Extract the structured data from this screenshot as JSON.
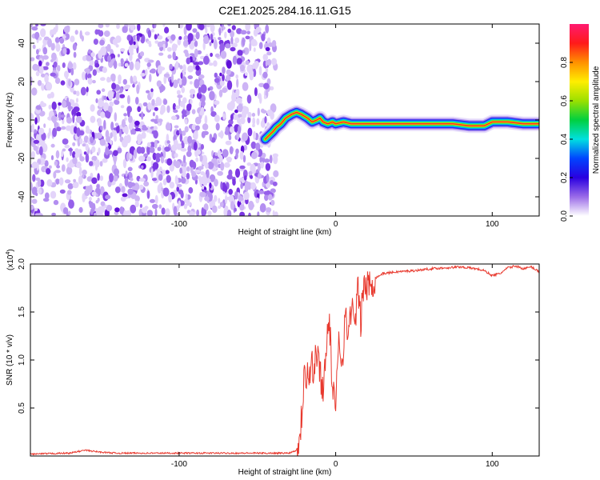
{
  "title": "C2E1.2025.284.16.11.G15",
  "chart_data": [
    {
      "type": "heatmap",
      "xlabel": "Height of straight line (km)",
      "ylabel": "Frequency (Hz)",
      "xlim": [
        -195,
        130
      ],
      "ylim": [
        -50,
        50
      ],
      "xticks": [
        -100,
        0,
        100
      ],
      "yticks": [
        -40,
        -20,
        0,
        20,
        40
      ],
      "noise_region_x": [
        -195,
        -38
      ],
      "signal_trace": {
        "x": [
          -45,
          -40,
          -38,
          -35,
          -32,
          -28,
          -25,
          -22,
          -18,
          -15,
          -12,
          -10,
          -8,
          -5,
          -2,
          0,
          5,
          10,
          20,
          40,
          60,
          75,
          85,
          95,
          100,
          110,
          120,
          130
        ],
        "y": [
          -10,
          -6,
          -4,
          -2,
          1,
          3,
          4,
          3,
          1,
          -1,
          0,
          1,
          -1,
          -2,
          -1,
          -2,
          -1,
          -2,
          -2,
          -2,
          -2,
          -2,
          -3,
          -3,
          -1,
          -1,
          -2,
          -2
        ]
      },
      "colorbar": {
        "label": "Normalized spectral amplitude",
        "range": [
          0,
          1
        ],
        "ticks": [
          "0.0",
          "0.2",
          "0.4",
          "0.6",
          "0.8"
        ]
      }
    },
    {
      "type": "line",
      "xlabel": "Height of straight line (km)",
      "ylabel": "SNR (10 * v/v)",
      "yscale_label": "(x10",
      "yscale_exp": "4",
      "xlim": [
        -195,
        130
      ],
      "ylim": [
        0,
        2.0
      ],
      "xticks": [
        -100,
        0,
        100
      ],
      "yticks": [
        0.5,
        1.0,
        1.5,
        2.0
      ],
      "ytick_labels": [
        "0.5",
        "1.0",
        "1.5",
        "2.0"
      ],
      "color": "#e8392e",
      "series": [
        {
          "x": [
            -195,
            -170,
            -160,
            -150,
            -140,
            -100,
            -60,
            -30,
            -25,
            -23,
            -21,
            -20,
            -19,
            -18,
            -17,
            -16,
            -15,
            -14,
            -13,
            -10,
            -8,
            -6,
            -4,
            -2,
            0,
            2,
            4,
            6,
            8,
            10,
            12,
            14,
            16,
            18,
            20,
            25,
            30,
            40,
            50,
            60,
            70,
            80,
            90,
            95,
            100,
            105,
            110,
            115,
            120,
            125,
            130
          ],
          "y": [
            0.02,
            0.03,
            0.06,
            0.04,
            0.03,
            0.03,
            0.03,
            0.03,
            0.06,
            0.2,
            0.55,
            1.05,
            0.8,
            0.95,
            0.85,
            0.9,
            1.0,
            0.75,
            1.1,
            0.9,
            0.65,
            1.2,
            1.4,
            0.7,
            0.45,
            1.3,
            0.95,
            1.45,
            1.25,
            1.6,
            1.3,
            1.75,
            1.4,
            1.8,
            1.75,
            1.85,
            1.9,
            1.92,
            1.93,
            1.95,
            1.96,
            1.97,
            1.95,
            1.93,
            1.88,
            1.9,
            1.96,
            1.98,
            1.95,
            1.97,
            1.92
          ]
        }
      ]
    }
  ]
}
